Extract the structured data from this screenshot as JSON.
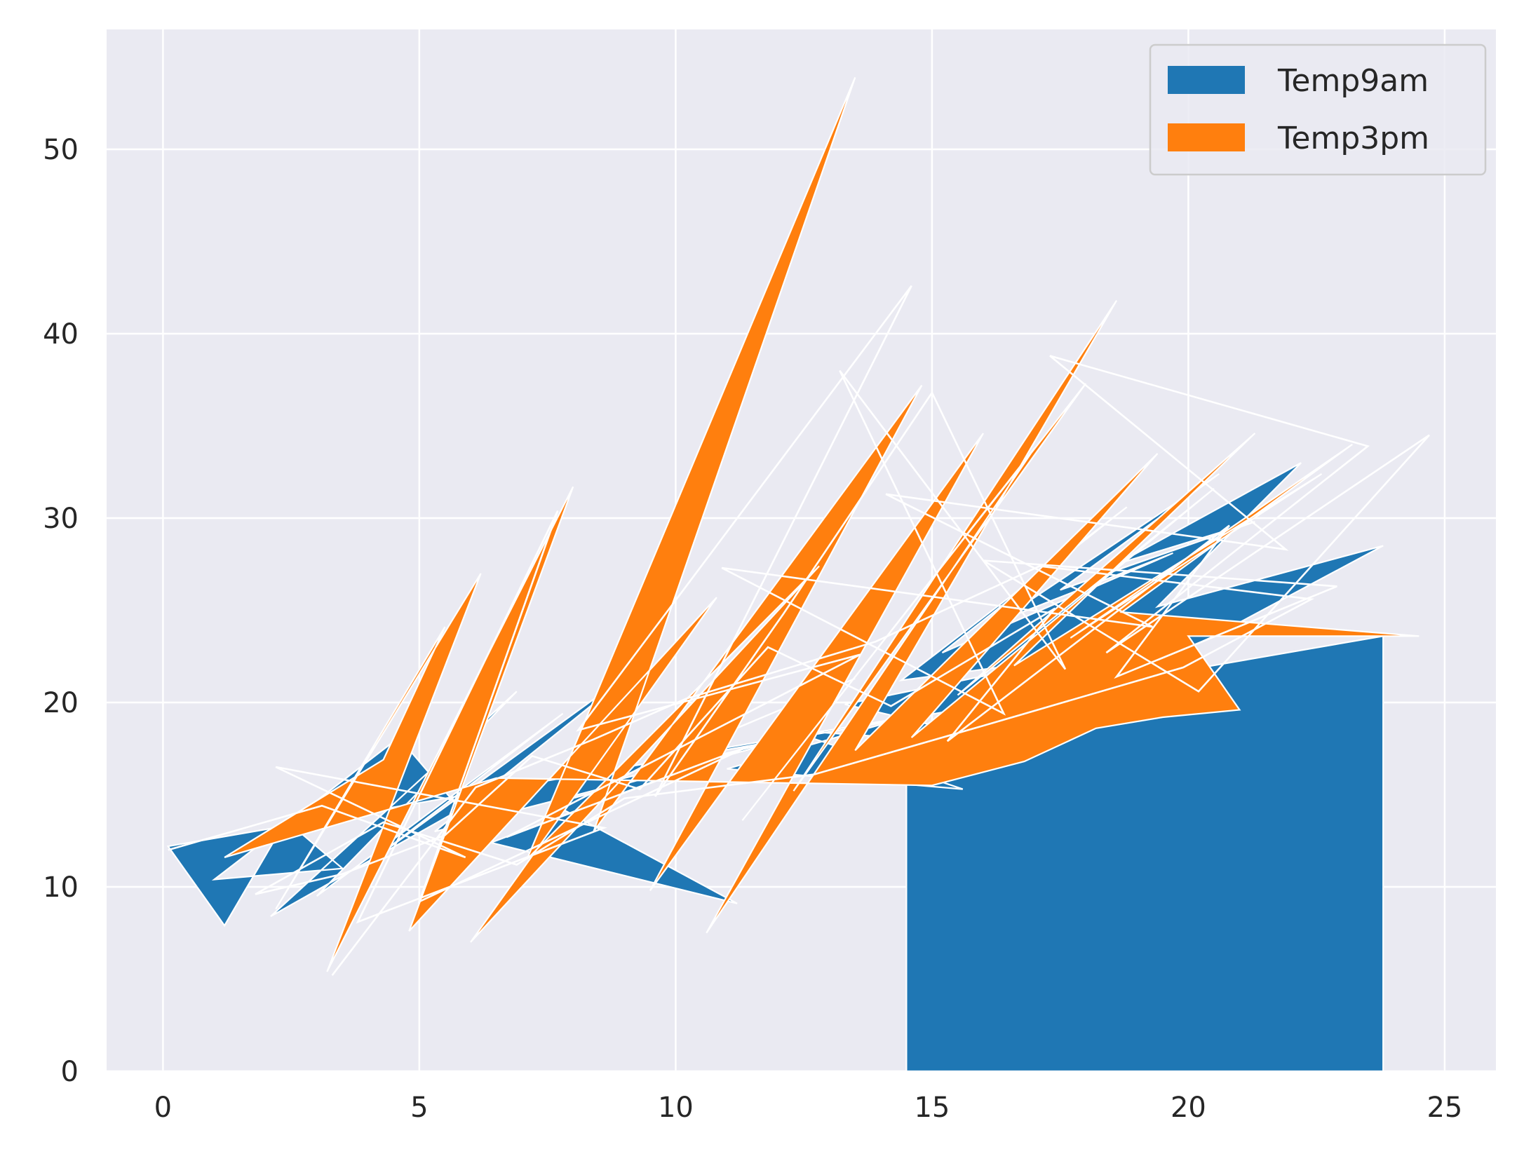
{
  "chart_data": {
    "type": "area",
    "title": "",
    "xlabel": "",
    "ylabel": "",
    "xlim": [
      -1.1,
      26.0
    ],
    "ylim": [
      0,
      56.5
    ],
    "x_ticks": [
      0,
      5,
      10,
      15,
      20,
      25
    ],
    "y_ticks": [
      0,
      10,
      20,
      30,
      40,
      50
    ],
    "grid": true,
    "legend_position": "top-right",
    "colors": {
      "background": "#EAEAF2",
      "grid": "#FFFFFF",
      "outline": "#FFFFFF",
      "legend_frame": "#CCCCCC"
    },
    "series": [
      {
        "name": "Temp9am",
        "color": "#1F77B4",
        "x": [
          0.1,
          1.2,
          2.4,
          3.5,
          1.0,
          4.6,
          5.8,
          2.1,
          6.9,
          3.0,
          7.8,
          4.2,
          9.5,
          5.3,
          10.6,
          6.4,
          11.2,
          7.6,
          12.4,
          8.7,
          13.5,
          9.8,
          14.5,
          11.0,
          15.6,
          12.2,
          16.8,
          13.3,
          17.9,
          14.4,
          18.8,
          15.2,
          19.7,
          16.3,
          20.6,
          17.5,
          21.3,
          18.6,
          22.2,
          19.4,
          23.8,
          20.5,
          14.5,
          14.5,
          23.8,
          23.8
        ],
        "y": [
          12.2,
          7.9,
          13.6,
          11.0,
          10.4,
          18.1,
          14.2,
          8.4,
          20.6,
          9.5,
          19.4,
          11.7,
          22.4,
          13.0,
          16.8,
          12.4,
          9.1,
          14.5,
          18.2,
          15.7,
          21.3,
          17.0,
          19.2,
          16.4,
          15.3,
          18.5,
          17.6,
          19.9,
          22.5,
          21.2,
          30.6,
          22.7,
          28.1,
          24.4,
          32.4,
          26.1,
          29.8,
          27.5,
          33.0,
          25.2,
          28.5,
          23.6,
          16.0,
          0.0,
          0.0,
          23.6
        ]
      },
      {
        "name": "Temp3pm",
        "color": "#FF7F0E",
        "x": [
          1.2,
          4.3,
          5.5,
          2.2,
          6.2,
          3.2,
          8.0,
          4.8,
          10.8,
          6.0,
          12.8,
          7.1,
          13.5,
          8.4,
          14.8,
          9.5,
          16.0,
          10.6,
          17.0,
          11.3,
          18.0,
          12.3,
          18.6,
          13.5,
          19.4,
          14.6,
          20.5,
          15.5,
          21.3,
          16.6,
          22.6,
          17.7,
          23.2,
          18.7,
          24.5,
          20.0,
          21.0,
          19.5,
          18.2,
          16.8,
          15.0,
          6.5
        ],
        "y": [
          11.6,
          16.9,
          24.1,
          8.8,
          27.0,
          5.4,
          31.7,
          7.6,
          25.7,
          7.0,
          27.4,
          11.5,
          53.9,
          13.0,
          37.2,
          9.8,
          34.6,
          7.5,
          33.8,
          13.6,
          37.3,
          15.2,
          41.8,
          17.4,
          33.5,
          18.1,
          31.6,
          20.4,
          34.6,
          22.0,
          32.4,
          23.5,
          34.0,
          24.9,
          23.6,
          23.6,
          19.6,
          19.2,
          18.6,
          16.8,
          15.5,
          15.9
        ]
      },
      {
        "name": "",
        "color": "#FFFFFF",
        "x": [
          0.1,
          3.1,
          5.9,
          2.2,
          8.6,
          3.8,
          7.7,
          5.0,
          11.4,
          6.7,
          13.6,
          8.1,
          14.6,
          9.6,
          12.1,
          15.0,
          17.6,
          13.2,
          16.4,
          10.9,
          19.3,
          14.1,
          21.9,
          17.3,
          23.5,
          18.4,
          24.7,
          20.2,
          16.0,
          22.9,
          18.6,
          20.8,
          15.3,
          17.4,
          14.2,
          11.8,
          9.3,
          7.2,
          5.5,
          3.5,
          1.8,
          4.3,
          6.9,
          9.0,
          12.7,
          16.2,
          19.9,
          22.4,
          17.1,
          13.9,
          10.2,
          8.4,
          6.1,
          3.3
        ],
        "y": [
          12.0,
          14.4,
          11.6,
          16.5,
          13.2,
          8.1,
          30.4,
          9.2,
          17.6,
          12.7,
          22.6,
          18.5,
          42.6,
          14.9,
          24.8,
          36.8,
          21.8,
          38.0,
          19.4,
          27.3,
          24.1,
          31.3,
          28.3,
          38.8,
          33.9,
          22.7,
          34.5,
          20.6,
          27.7,
          26.3,
          21.4,
          29.6,
          17.9,
          25.1,
          19.8,
          23.0,
          15.3,
          17.1,
          12.8,
          10.7,
          9.6,
          13.5,
          11.2,
          14.8,
          16.1,
          18.9,
          21.9,
          25.6,
          27.4,
          23.3,
          20.2,
          18.0,
          15.4,
          5.2
        ]
      }
    ]
  }
}
